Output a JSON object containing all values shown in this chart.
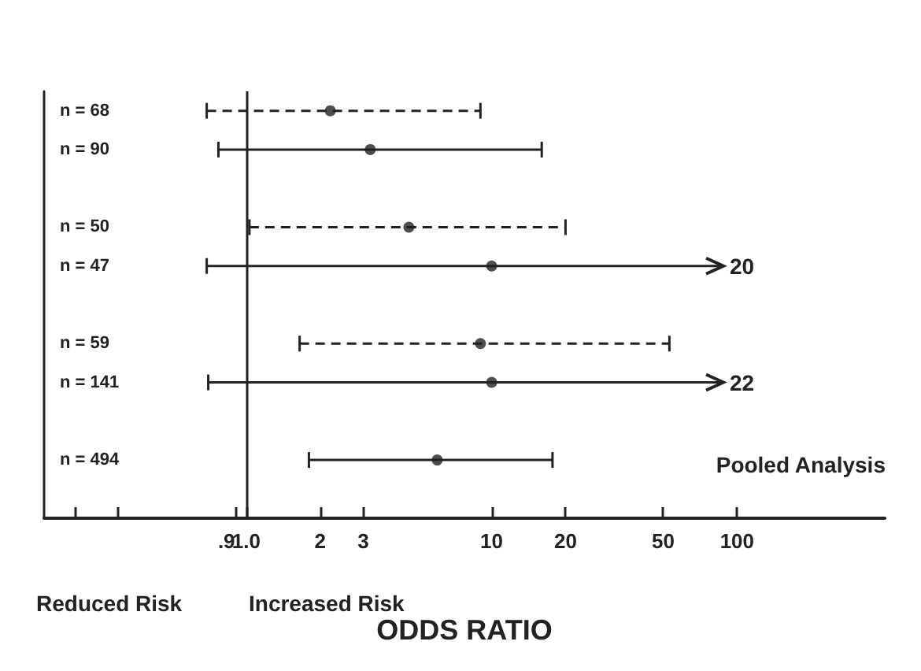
{
  "chart_data": {
    "type": "scatter",
    "orientation": "horizontal",
    "xlabel": "ODDS RATIO",
    "log": "x",
    "grid": false,
    "marker": "circle",
    "categories": [
      "n = 68",
      "n = 90",
      null,
      "n = 50",
      "n = 47",
      null,
      "n = 59",
      "n = 141",
      null,
      "n = 494",
      null
    ],
    "xlim": [
      0.15,
      400
    ],
    "xticks": [
      {
        "value": 0.2,
        "label": null
      },
      {
        "value": 0.3,
        "label": null
      },
      {
        "value": 0.9,
        "label": ".9"
      },
      {
        "value": 1,
        "label": "1.0"
      },
      2,
      3,
      10,
      20,
      50,
      100
    ],
    "series": [
      {
        "color": "#222222",
        "line_style": "dashed",
        "values": [
          2.2,
          null,
          null,
          4.6,
          null,
          null,
          9,
          null,
          null,
          null,
          null
        ],
        "errors": [
          [
            0.69,
            9
          ],
          null,
          null,
          [
            1.03,
            20
          ],
          null,
          null,
          [
            1.65,
            53
          ],
          null,
          null,
          null,
          null
        ]
      },
      {
        "color": "#222222",
        "line_style": "solid",
        "values": [
          null,
          3.2,
          null,
          null,
          10,
          null,
          null,
          10,
          null,
          6,
          null
        ],
        "errors": [
          null,
          [
            0.77,
            16
          ],
          null,
          null,
          [
            0.69,
            88
          ],
          null,
          null,
          [
            0.7,
            88
          ],
          null,
          [
            1.8,
            17.7
          ],
          null
        ]
      }
    ],
    "ref_lines": [
      {
        "axis": "x",
        "value": 1,
        "label": null,
        "color": "#222222",
        "line_style": "solid"
      }
    ],
    "annotations": [
      "Reduced Risk",
      "Increased Risk",
      "Pooled Analysis",
      "20",
      "22"
    ]
  }
}
